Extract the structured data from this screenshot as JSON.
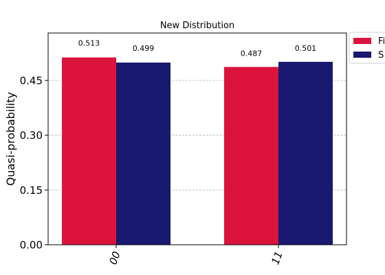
{
  "chart_data": {
    "type": "bar",
    "title": "New Distribution",
    "xlabel": "",
    "ylabel": "Quasi-probability",
    "categories": [
      "00",
      "11"
    ],
    "series": [
      {
        "name": "Fi",
        "color": "#dc143c",
        "values": [
          0.513,
          0.487
        ],
        "labels": [
          "0.513",
          "0.487"
        ]
      },
      {
        "name": "S",
        "color": "#191970",
        "values": [
          0.499,
          0.501
        ],
        "labels": [
          "0.499",
          "0.501"
        ]
      }
    ],
    "ylim": [
      0,
      0.58
    ],
    "yticks": [
      0.0,
      0.15,
      0.3,
      0.45
    ],
    "ytick_labels": [
      "0.00",
      "0.15",
      "0.30",
      "0.45"
    ],
    "grid": "horizontal-dashed",
    "legend": "top-right"
  }
}
